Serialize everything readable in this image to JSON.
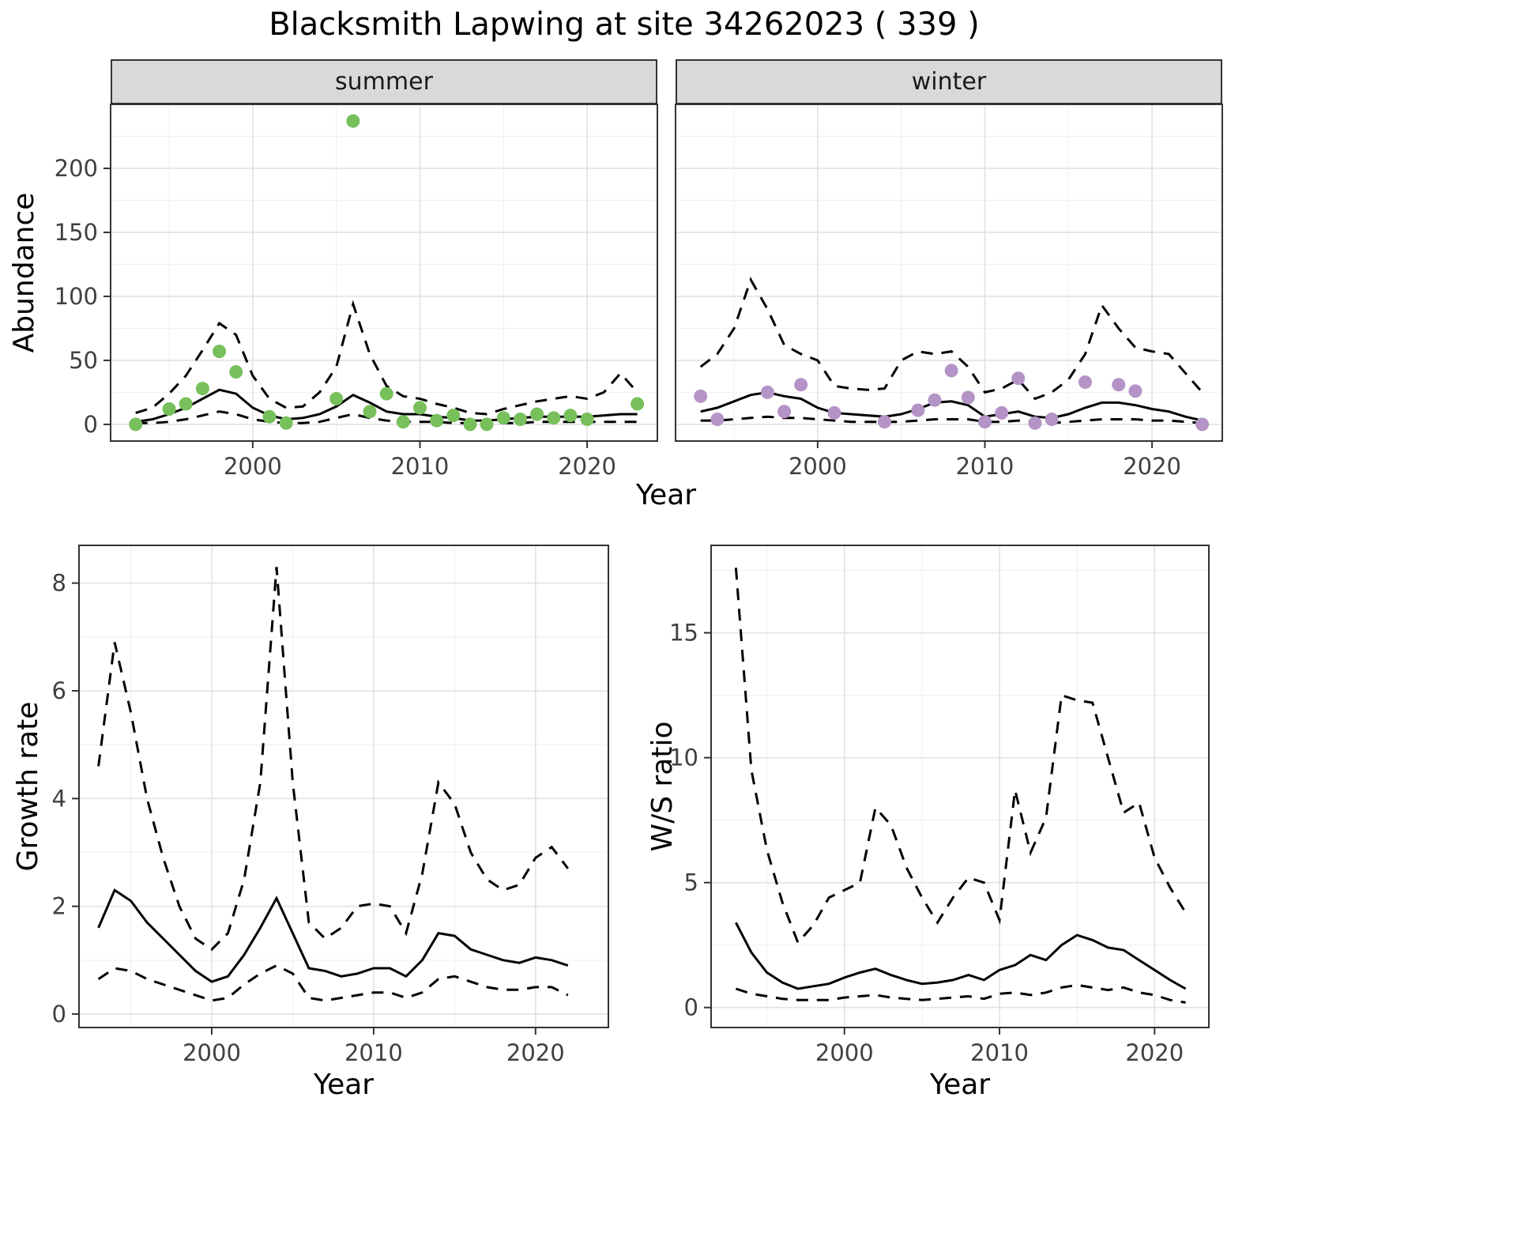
{
  "title": "Blacksmith Lapwing at site 34262023 ( 339 )",
  "chart_data": [
    {
      "id": "abundance_summer",
      "type": "line+scatter",
      "facet_label": "summer",
      "xlabel": "Year",
      "ylabel": "Abundance",
      "xlim": [
        1991.5,
        2024.2
      ],
      "ylim": [
        -13,
        250
      ],
      "xticks": [
        2000,
        2010,
        2020
      ],
      "yticks": [
        0,
        50,
        100,
        150,
        200
      ],
      "xticks_minor": [
        1995,
        2005,
        2015
      ],
      "yticks_minor": [
        25,
        75,
        125,
        175,
        225
      ],
      "grid": true,
      "legend": "none",
      "point_color": "#77C05B",
      "series": {
        "observed": {
          "x": [
            1993,
            1995,
            1996,
            1997,
            1998,
            1999,
            2001,
            2002,
            2005,
            2006,
            2007,
            2008,
            2009,
            2010,
            2011,
            2012,
            2013,
            2014,
            2015,
            2016,
            2017,
            2018,
            2019,
            2020,
            2023
          ],
          "y": [
            0,
            12,
            16,
            28,
            57,
            41,
            6,
            1,
            20,
            237,
            10,
            24,
            2,
            13,
            3,
            7,
            0,
            0,
            5,
            4,
            8,
            5,
            7,
            4,
            16
          ]
        },
        "fit": {
          "x": [
            1993,
            1994,
            1995,
            1996,
            1997,
            1998,
            1999,
            2000,
            2001,
            2002,
            2003,
            2004,
            2005,
            2006,
            2007,
            2008,
            2009,
            2010,
            2011,
            2012,
            2013,
            2014,
            2015,
            2016,
            2017,
            2018,
            2019,
            2020,
            2021,
            2022,
            2023
          ],
          "y": [
            2,
            4,
            8,
            13,
            20,
            27,
            24,
            13,
            7,
            4,
            5,
            8,
            14,
            23,
            17,
            10,
            8,
            8,
            6,
            5,
            3,
            3,
            4,
            5,
            6,
            6,
            6,
            6,
            7,
            8,
            8
          ]
        },
        "upper_ci": {
          "x": [
            1993,
            1994,
            1995,
            1996,
            1997,
            1998,
            1999,
            2000,
            2001,
            2002,
            2003,
            2004,
            2005,
            2006,
            2007,
            2008,
            2009,
            2010,
            2011,
            2012,
            2013,
            2014,
            2015,
            2016,
            2017,
            2018,
            2019,
            2020,
            2021,
            2022,
            2023
          ],
          "y": [
            9,
            13,
            24,
            38,
            58,
            79,
            70,
            38,
            20,
            13,
            14,
            25,
            45,
            94,
            55,
            30,
            22,
            20,
            16,
            13,
            9,
            8,
            12,
            15,
            18,
            20,
            22,
            20,
            25,
            40,
            25
          ]
        },
        "lower_ci": {
          "x": [
            1993,
            1994,
            1995,
            1996,
            1997,
            1998,
            1999,
            2000,
            2001,
            2002,
            2003,
            2004,
            2005,
            2006,
            2007,
            2008,
            2009,
            2010,
            2011,
            2012,
            2013,
            2014,
            2015,
            2016,
            2017,
            2018,
            2019,
            2020,
            2021,
            2022,
            2023
          ],
          "y": [
            1,
            1,
            2,
            4,
            7,
            10,
            8,
            4,
            2,
            1,
            1,
            2,
            5,
            8,
            5,
            3,
            2,
            2,
            2,
            1,
            1,
            1,
            1,
            1,
            2,
            2,
            2,
            2,
            2,
            2,
            2
          ]
        }
      }
    },
    {
      "id": "abundance_winter",
      "type": "line+scatter",
      "facet_label": "winter",
      "xlabel": "Year",
      "ylabel": "Abundance",
      "xlim": [
        1991.5,
        2024.2
      ],
      "ylim": [
        -13,
        250
      ],
      "xticks": [
        2000,
        2010,
        2020
      ],
      "yticks": [
        0,
        50,
        100,
        150,
        200
      ],
      "xticks_minor": [
        1995,
        2005,
        2015
      ],
      "yticks_minor": [
        25,
        75,
        125,
        175,
        225
      ],
      "grid": true,
      "legend": "none",
      "point_color": "#B493C6",
      "series": {
        "observed": {
          "x": [
            1993,
            1994,
            1997,
            1998,
            1999,
            2001,
            2004,
            2006,
            2007,
            2008,
            2009,
            2010,
            2011,
            2012,
            2013,
            2014,
            2016,
            2018,
            2019,
            2023
          ],
          "y": [
            22,
            4,
            25,
            10,
            31,
            9,
            2,
            11,
            19,
            42,
            21,
            2,
            9,
            36,
            1,
            4,
            33,
            31,
            26,
            0
          ]
        },
        "fit": {
          "x": [
            1993,
            1994,
            1995,
            1996,
            1997,
            1998,
            1999,
            2000,
            2001,
            2002,
            2003,
            2004,
            2005,
            2006,
            2007,
            2008,
            2009,
            2010,
            2011,
            2012,
            2013,
            2014,
            2015,
            2016,
            2017,
            2018,
            2019,
            2020,
            2021,
            2022,
            2023
          ],
          "y": [
            10,
            13,
            18,
            23,
            25,
            22,
            20,
            13,
            9,
            8,
            7,
            6,
            8,
            12,
            17,
            18,
            15,
            6,
            8,
            10,
            6,
            5,
            8,
            13,
            17,
            17,
            15,
            12,
            10,
            6,
            3
          ]
        },
        "upper_ci": {
          "x": [
            1993,
            1994,
            1995,
            1996,
            1997,
            1998,
            1999,
            2000,
            2001,
            2002,
            2003,
            2004,
            2005,
            2006,
            2007,
            2008,
            2009,
            2010,
            2011,
            2012,
            2013,
            2014,
            2015,
            2016,
            2017,
            2018,
            2019,
            2020,
            2021,
            2022,
            2023
          ],
          "y": [
            45,
            55,
            75,
            113,
            90,
            62,
            55,
            50,
            30,
            28,
            27,
            28,
            50,
            57,
            55,
            57,
            45,
            25,
            28,
            35,
            20,
            25,
            35,
            55,
            93,
            75,
            60,
            57,
            55,
            40,
            25
          ]
        },
        "lower_ci": {
          "x": [
            1993,
            1994,
            1995,
            1996,
            1997,
            1998,
            1999,
            2000,
            2001,
            2002,
            2003,
            2004,
            2005,
            2006,
            2007,
            2008,
            2009,
            2010,
            2011,
            2012,
            2013,
            2014,
            2015,
            2016,
            2017,
            2018,
            2019,
            2020,
            2021,
            2022,
            2023
          ],
          "y": [
            3,
            3,
            4,
            5,
            6,
            5,
            5,
            4,
            3,
            2,
            2,
            2,
            2,
            3,
            4,
            4,
            4,
            2,
            2,
            3,
            2,
            1,
            2,
            3,
            4,
            4,
            4,
            3,
            3,
            2,
            1
          ]
        }
      }
    },
    {
      "id": "growth_rate",
      "type": "line",
      "xlabel": "Year",
      "ylabel": "Growth rate",
      "xlim": [
        1991.8,
        2024.5
      ],
      "ylim": [
        -0.25,
        8.7
      ],
      "xticks": [
        2000,
        2010,
        2020
      ],
      "yticks": [
        0,
        2,
        4,
        6,
        8
      ],
      "xticks_minor": [
        1995,
        2005,
        2015
      ],
      "yticks_minor": [
        1,
        3,
        5,
        7
      ],
      "grid": true,
      "legend": "none",
      "series": {
        "fit": {
          "x": [
            1993,
            1994,
            1995,
            1996,
            1997,
            1998,
            1999,
            2000,
            2001,
            2002,
            2003,
            2004,
            2005,
            2006,
            2007,
            2008,
            2009,
            2010,
            2011,
            2012,
            2013,
            2014,
            2015,
            2016,
            2017,
            2018,
            2019,
            2020,
            2021,
            2022
          ],
          "y": [
            1.6,
            2.3,
            2.1,
            1.7,
            1.4,
            1.1,
            0.8,
            0.6,
            0.7,
            1.1,
            1.6,
            2.15,
            1.5,
            0.85,
            0.8,
            0.7,
            0.75,
            0.85,
            0.85,
            0.7,
            1.0,
            1.5,
            1.45,
            1.2,
            1.1,
            1.0,
            0.95,
            1.05,
            1.0,
            0.9
          ]
        },
        "upper_ci": {
          "x": [
            1993,
            1994,
            1995,
            1996,
            1997,
            1998,
            1999,
            2000,
            2001,
            2002,
            2003,
            2004,
            2005,
            2006,
            2007,
            2008,
            2009,
            2010,
            2011,
            2012,
            2013,
            2014,
            2015,
            2016,
            2017,
            2018,
            2019,
            2020,
            2021,
            2022
          ],
          "y": [
            4.6,
            6.9,
            5.6,
            4.0,
            2.9,
            2.0,
            1.4,
            1.2,
            1.5,
            2.5,
            4.3,
            8.3,
            4.3,
            1.7,
            1.4,
            1.6,
            2.0,
            2.05,
            2.0,
            1.5,
            2.6,
            4.3,
            3.9,
            3.0,
            2.5,
            2.3,
            2.4,
            2.9,
            3.1,
            2.7
          ]
        },
        "lower_ci": {
          "x": [
            1993,
            1994,
            1995,
            1996,
            1997,
            1998,
            1999,
            2000,
            2001,
            2002,
            2003,
            2004,
            2005,
            2006,
            2007,
            2008,
            2009,
            2010,
            2011,
            2012,
            2013,
            2014,
            2015,
            2016,
            2017,
            2018,
            2019,
            2020,
            2021,
            2022
          ],
          "y": [
            0.65,
            0.85,
            0.8,
            0.65,
            0.55,
            0.45,
            0.35,
            0.25,
            0.3,
            0.55,
            0.75,
            0.9,
            0.75,
            0.3,
            0.25,
            0.3,
            0.35,
            0.4,
            0.4,
            0.3,
            0.4,
            0.65,
            0.7,
            0.6,
            0.5,
            0.45,
            0.45,
            0.5,
            0.5,
            0.35
          ]
        }
      }
    },
    {
      "id": "ws_ratio",
      "type": "line",
      "xlabel": "Year",
      "ylabel": "W/S ratio",
      "xlim": [
        1991.4,
        2023.5
      ],
      "ylim": [
        -0.8,
        18.5
      ],
      "xticks": [
        2000,
        2010,
        2020
      ],
      "yticks": [
        0,
        5,
        10,
        15
      ],
      "xticks_minor": [
        1995,
        2005,
        2015
      ],
      "yticks_minor": [
        2.5,
        7.5,
        12.5,
        17.5
      ],
      "grid": true,
      "legend": "none",
      "series": {
        "fit": {
          "x": [
            1993,
            1994,
            1995,
            1996,
            1997,
            1998,
            1999,
            2000,
            2001,
            2002,
            2003,
            2004,
            2005,
            2006,
            2007,
            2008,
            2009,
            2010,
            2011,
            2012,
            2013,
            2014,
            2015,
            2016,
            2017,
            2018,
            2019,
            2020,
            2021,
            2022
          ],
          "y": [
            3.4,
            2.2,
            1.4,
            1.0,
            0.75,
            0.85,
            0.95,
            1.2,
            1.4,
            1.55,
            1.3,
            1.1,
            0.95,
            1.0,
            1.1,
            1.3,
            1.1,
            1.5,
            1.7,
            2.1,
            1.9,
            2.5,
            2.9,
            2.7,
            2.4,
            2.3,
            1.9,
            1.5,
            1.1,
            0.75
          ]
        },
        "upper_ci": {
          "x": [
            1993,
            1994,
            1995,
            1996,
            1997,
            1998,
            1999,
            2000,
            2001,
            2002,
            2003,
            2004,
            2005,
            2006,
            2007,
            2008,
            2009,
            2010,
            2011,
            2012,
            2013,
            2014,
            2015,
            2016,
            2017,
            2018,
            2019,
            2020,
            2021,
            2022
          ],
          "y": [
            17.6,
            9.5,
            6.3,
            4.2,
            2.6,
            3.3,
            4.4,
            4.7,
            5.0,
            8.0,
            7.3,
            5.6,
            4.4,
            3.4,
            4.4,
            5.2,
            5.0,
            3.5,
            8.7,
            6.2,
            7.6,
            12.5,
            12.3,
            12.2,
            10.0,
            7.8,
            8.2,
            6.0,
            4.8,
            3.8
          ]
        },
        "lower_ci": {
          "x": [
            1993,
            1994,
            1995,
            1996,
            1997,
            1998,
            1999,
            2000,
            2001,
            2002,
            2003,
            2004,
            2005,
            2006,
            2007,
            2008,
            2009,
            2010,
            2011,
            2012,
            2013,
            2014,
            2015,
            2016,
            2017,
            2018,
            2019,
            2020,
            2021,
            2022
          ],
          "y": [
            0.75,
            0.55,
            0.45,
            0.35,
            0.3,
            0.3,
            0.3,
            0.4,
            0.45,
            0.5,
            0.4,
            0.35,
            0.3,
            0.35,
            0.4,
            0.45,
            0.35,
            0.55,
            0.6,
            0.5,
            0.6,
            0.8,
            0.9,
            0.8,
            0.7,
            0.8,
            0.6,
            0.5,
            0.3,
            0.2
          ]
        }
      }
    }
  ]
}
